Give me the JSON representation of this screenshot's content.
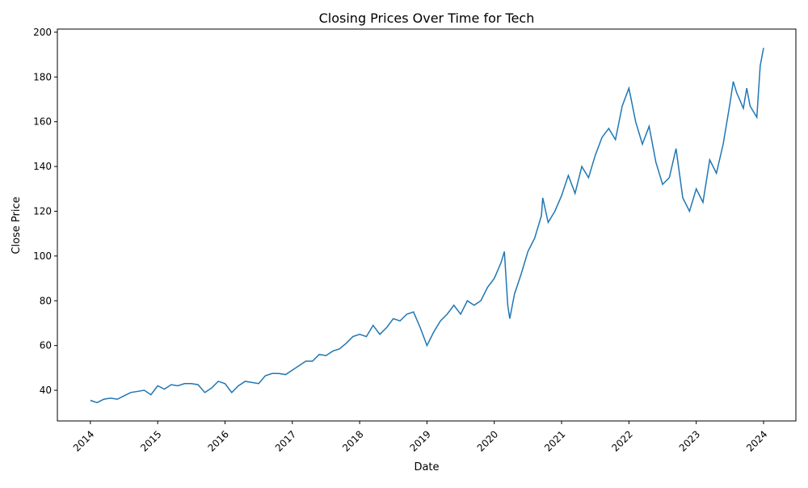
{
  "chart_data": {
    "type": "line",
    "title": "Closing Prices Over Time for Tech",
    "x_label": "Date",
    "y_label": "Close Price",
    "x": [
      2014.0,
      2014.1,
      2014.2,
      2014.3,
      2014.4,
      2014.5,
      2014.6,
      2014.7,
      2014.8,
      2014.9,
      2015.0,
      2015.1,
      2015.2,
      2015.3,
      2015.4,
      2015.5,
      2015.6,
      2015.7,
      2015.8,
      2015.9,
      2016.0,
      2016.1,
      2016.2,
      2016.3,
      2016.4,
      2016.5,
      2016.6,
      2016.7,
      2016.8,
      2016.9,
      2017.0,
      2017.1,
      2017.2,
      2017.3,
      2017.4,
      2017.5,
      2017.6,
      2017.7,
      2017.8,
      2017.9,
      2018.0,
      2018.1,
      2018.2,
      2018.3,
      2018.4,
      2018.5,
      2018.6,
      2018.7,
      2018.8,
      2018.9,
      2019.0,
      2019.1,
      2019.2,
      2019.3,
      2019.4,
      2019.5,
      2019.6,
      2019.7,
      2019.8,
      2019.9,
      2020.0,
      2020.1,
      2020.15,
      2020.2,
      2020.23,
      2020.3,
      2020.4,
      2020.5,
      2020.6,
      2020.7,
      2020.72,
      2020.8,
      2020.9,
      2021.0,
      2021.1,
      2021.2,
      2021.3,
      2021.4,
      2021.5,
      2021.6,
      2021.7,
      2021.8,
      2021.9,
      2022.0,
      2022.1,
      2022.2,
      2022.3,
      2022.4,
      2022.5,
      2022.6,
      2022.7,
      2022.8,
      2022.9,
      2023.0,
      2023.1,
      2023.2,
      2023.3,
      2023.4,
      2023.5,
      2023.55,
      2023.6,
      2023.7,
      2023.75,
      2023.8,
      2023.9,
      2023.95,
      2024.0
    ],
    "series": [
      {
        "name": "Tech",
        "color": "#1f77b4",
        "values": [
          35.5,
          34.5,
          36,
          36.5,
          36,
          37.5,
          39,
          39.5,
          40,
          38,
          42,
          40.5,
          42.5,
          42,
          43,
          43,
          42.5,
          39,
          41,
          44,
          43,
          39,
          42,
          44,
          43.5,
          43,
          46.5,
          47.5,
          47.5,
          47,
          49,
          51,
          53,
          53,
          56,
          55.5,
          57.5,
          58.5,
          61,
          64,
          65,
          64,
          69,
          65,
          68,
          72,
          71,
          74,
          75,
          68,
          60,
          66,
          71,
          74,
          78,
          74,
          80,
          78,
          80,
          86,
          90,
          97,
          102,
          78,
          72,
          83,
          92,
          102,
          108,
          118,
          126,
          115,
          120,
          127,
          136,
          128,
          140,
          135,
          145,
          153,
          157,
          152,
          167,
          175,
          160,
          150,
          158,
          142,
          132,
          135,
          148,
          126,
          120,
          130,
          124,
          143,
          137,
          150,
          168,
          178,
          173,
          166,
          175,
          167,
          162,
          185,
          193
        ]
      }
    ],
    "xlim": [
      2013.51,
      2024.48
    ],
    "xticks": [
      2014,
      2015,
      2016,
      2017,
      2018,
      2019,
      2020,
      2021,
      2022,
      2023,
      2024
    ],
    "ylim": [
      26.3,
      201.4
    ],
    "yticks": [
      40,
      60,
      80,
      100,
      120,
      140,
      160,
      180,
      200
    ]
  }
}
